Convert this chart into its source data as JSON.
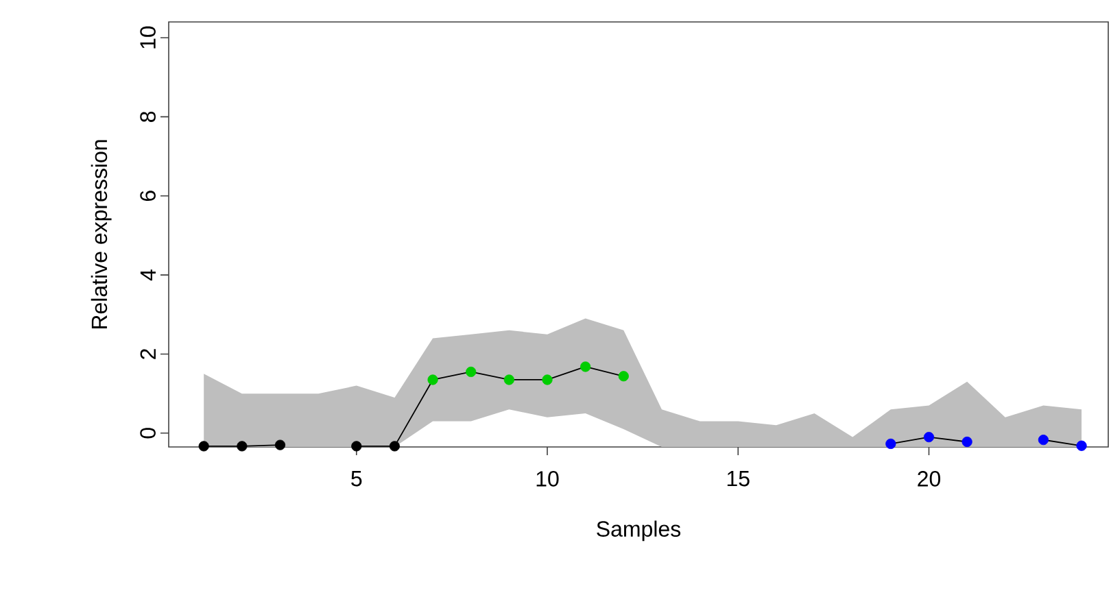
{
  "chart_data": {
    "type": "line",
    "xlabel": "Samples",
    "ylabel": "Relative expression",
    "x": [
      1,
      2,
      3,
      4,
      5,
      6,
      7,
      8,
      9,
      10,
      11,
      12,
      13,
      14,
      15,
      16,
      17,
      18,
      19,
      20,
      21,
      22,
      23,
      24
    ],
    "series": [
      {
        "color": "#bebebe",
        "values": [
          null,
          null,
          null,
          null,
          null,
          null,
          null,
          null,
          null,
          null,
          null,
          null,
          null,
          null,
          null,
          null,
          null,
          null,
          null,
          null,
          null,
          null,
          null,
          null
        ],
        "lower": [
          -0.35,
          -0.35,
          -0.35,
          -0.35,
          -0.35,
          -0.35,
          0.3,
          0.3,
          0.6,
          0.4,
          0.5,
          0.1,
          -0.35,
          -0.35,
          -0.35,
          -0.35,
          -0.35,
          -0.35,
          -0.35,
          -0.35,
          -0.35,
          -0.35,
          -0.35,
          -0.35
        ],
        "upper": [
          1.5,
          1.0,
          1.0,
          1.0,
          1.2,
          0.9,
          2.4,
          2.5,
          2.6,
          2.5,
          2.9,
          2.6,
          0.6,
          0.3,
          0.3,
          0.2,
          0.5,
          -0.1,
          0.6,
          0.7,
          1.3,
          0.4,
          0.7,
          0.6
        ]
      },
      {
        "color": "#000000",
        "colors": [
          "#000000",
          "#000000",
          "#000000",
          "#000000",
          "#000000",
          "#000000",
          "#00cd00",
          "#00cd00",
          "#00cd00",
          "#00cd00",
          "#00cd00",
          "#00cd00",
          null,
          null,
          null,
          null,
          null,
          null,
          "#0000ff",
          "#0000ff",
          "#0000ff",
          "#0000ff",
          "#0000ff",
          "#0000ff"
        ],
        "values": [
          -0.33,
          -0.33,
          -0.3,
          null,
          -0.33,
          -0.33,
          1.35,
          1.55,
          1.35,
          1.35,
          1.68,
          1.44,
          null,
          null,
          null,
          null,
          null,
          null,
          -0.27,
          -0.1,
          -0.22,
          null,
          -0.17,
          -0.32
        ]
      }
    ],
    "marker": "circle",
    "line_style": "solid",
    "xlim": [
      0.08,
      24.7
    ],
    "ylim": [
      -0.35,
      10.4
    ],
    "xticks": [
      5,
      10,
      15,
      20
    ],
    "yticks": [
      0,
      2,
      4,
      6,
      8,
      10
    ]
  }
}
